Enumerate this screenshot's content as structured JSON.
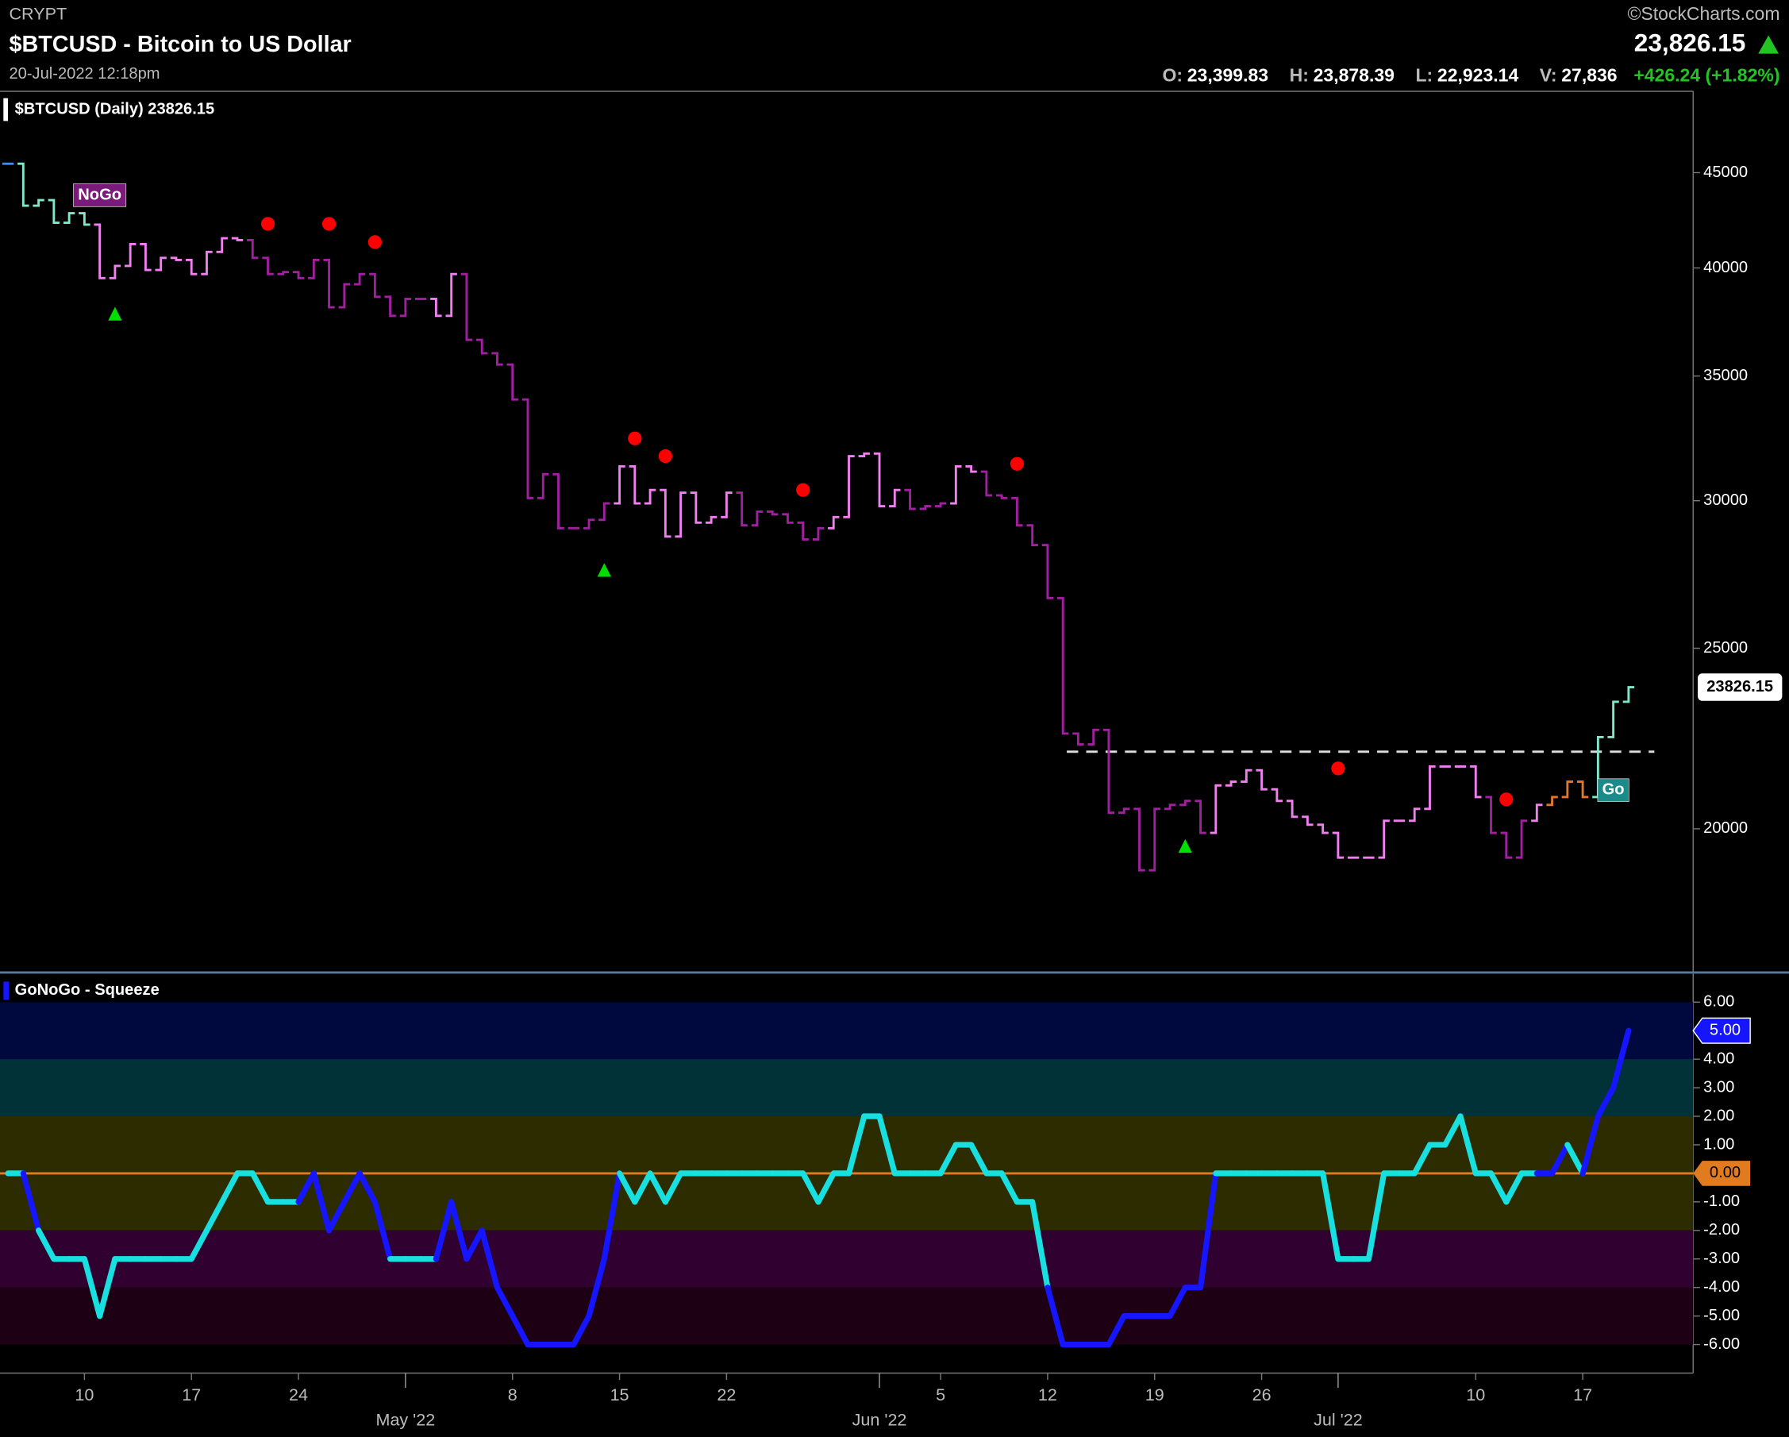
{
  "header": {
    "exchange": "CRYPT",
    "title": "$BTCUSD - Bitcoin to US Dollar",
    "timestamp": "20-Jul-2022 12:18pm",
    "source": "©StockCharts.com",
    "last_price": "23,826.15",
    "open": {
      "label": "O:",
      "value": "23,399.83"
    },
    "high": {
      "label": "H:",
      "value": "23,878.39"
    },
    "low": {
      "label": "L:",
      "value": "22,923.14"
    },
    "volume": {
      "label": "V:",
      "value": "27,836"
    },
    "change": "+426.24 (+1.82%)"
  },
  "chart_data": [
    {
      "type": "stock",
      "title": "$BTCUSD (Daily) 23826.15",
      "log_scale": true,
      "x": [
        "2022-04-05",
        "2022-04-06",
        "2022-04-07",
        "2022-04-08",
        "2022-04-09",
        "2022-04-10",
        "2022-04-11",
        "2022-04-12",
        "2022-04-13",
        "2022-04-14",
        "2022-04-15",
        "2022-04-16",
        "2022-04-17",
        "2022-04-18",
        "2022-04-19",
        "2022-04-20",
        "2022-04-21",
        "2022-04-22",
        "2022-04-23",
        "2022-04-24",
        "2022-04-25",
        "2022-04-26",
        "2022-04-27",
        "2022-04-28",
        "2022-04-29",
        "2022-04-30",
        "2022-05-01",
        "2022-05-02",
        "2022-05-03",
        "2022-05-04",
        "2022-05-05",
        "2022-05-06",
        "2022-05-07",
        "2022-05-08",
        "2022-05-09",
        "2022-05-10",
        "2022-05-11",
        "2022-05-12",
        "2022-05-13",
        "2022-05-14",
        "2022-05-15",
        "2022-05-16",
        "2022-05-17",
        "2022-05-18",
        "2022-05-19",
        "2022-05-20",
        "2022-05-21",
        "2022-05-22",
        "2022-05-23",
        "2022-05-24",
        "2022-05-25",
        "2022-05-26",
        "2022-05-27",
        "2022-05-28",
        "2022-05-29",
        "2022-05-30",
        "2022-05-31",
        "2022-06-01",
        "2022-06-02",
        "2022-06-03",
        "2022-06-04",
        "2022-06-05",
        "2022-06-06",
        "2022-06-07",
        "2022-06-08",
        "2022-06-09",
        "2022-06-10",
        "2022-06-11",
        "2022-06-12",
        "2022-06-13",
        "2022-06-14",
        "2022-06-15",
        "2022-06-16",
        "2022-06-17",
        "2022-06-18",
        "2022-06-19",
        "2022-06-20",
        "2022-06-21",
        "2022-06-22",
        "2022-06-23",
        "2022-06-24",
        "2022-06-25",
        "2022-06-26",
        "2022-06-27",
        "2022-06-28",
        "2022-06-29",
        "2022-06-30",
        "2022-07-01",
        "2022-07-02",
        "2022-07-03",
        "2022-07-04",
        "2022-07-05",
        "2022-07-06",
        "2022-07-07",
        "2022-07-08",
        "2022-07-09",
        "2022-07-10",
        "2022-07-11",
        "2022-07-12",
        "2022-07-13",
        "2022-07-14",
        "2022-07-15",
        "2022-07-16",
        "2022-07-17",
        "2022-07-18",
        "2022-07-19",
        "2022-07-20"
      ],
      "values": [
        45500,
        43200,
        43500,
        42300,
        42800,
        42200,
        39500,
        40100,
        41200,
        39900,
        40500,
        40400,
        39700,
        40800,
        41500,
        41400,
        40500,
        39700,
        39800,
        39500,
        40400,
        38100,
        39200,
        39700,
        38600,
        37700,
        38500,
        38500,
        37700,
        39700,
        36600,
        36000,
        35500,
        34000,
        30100,
        31000,
        29000,
        29000,
        29300,
        29900,
        31300,
        29900,
        30400,
        28700,
        30300,
        29200,
        29400,
        30300,
        29100,
        29600,
        29500,
        29200,
        28600,
        29000,
        29400,
        31700,
        31800,
        29800,
        30400,
        29700,
        29800,
        29900,
        31300,
        31100,
        30200,
        30100,
        29100,
        28400,
        26600,
        22500,
        22200,
        22600,
        20400,
        20500,
        19000,
        20500,
        20600,
        20700,
        19900,
        21100,
        21200,
        21500,
        21000,
        20700,
        20300,
        20100,
        19900,
        19300,
        19300,
        19300,
        20200,
        20200,
        20500,
        21600,
        21600,
        21600,
        20800,
        19900,
        19300,
        20200,
        20600,
        20800,
        21200,
        20800,
        22400,
        23400,
        23826.15
      ],
      "colors": [
        "#3a8bff",
        "#7fe8c8",
        "#7fe8c8",
        "#7fe8c8",
        "#7fe8c8",
        "#7fe8c8",
        "#f07ff0",
        "#f07ff0",
        "#f07ff0",
        "#f07ff0",
        "#f07ff0",
        "#f07ff0",
        "#f07ff0",
        "#f07ff0",
        "#f07ff0",
        "#f07ff0",
        "#a020a0",
        "#a020a0",
        "#a020a0",
        "#a020a0",
        "#a020a0",
        "#a020a0",
        "#a020a0",
        "#a020a0",
        "#a020a0",
        "#a020a0",
        "#a020a0",
        "#a020a0",
        "#f07ff0",
        "#f07ff0",
        "#a020a0",
        "#a020a0",
        "#a020a0",
        "#a020a0",
        "#a020a0",
        "#a020a0",
        "#a020a0",
        "#a020a0",
        "#a020a0",
        "#a020a0",
        "#f07ff0",
        "#f07ff0",
        "#f07ff0",
        "#f07ff0",
        "#f07ff0",
        "#f07ff0",
        "#f07ff0",
        "#f07ff0",
        "#a020a0",
        "#a020a0",
        "#a020a0",
        "#a020a0",
        "#a020a0",
        "#a020a0",
        "#f07ff0",
        "#f07ff0",
        "#f07ff0",
        "#f07ff0",
        "#f07ff0",
        "#a020a0",
        "#a020a0",
        "#a020a0",
        "#f07ff0",
        "#f07ff0",
        "#a020a0",
        "#a020a0",
        "#a020a0",
        "#a020a0",
        "#a020a0",
        "#a020a0",
        "#a020a0",
        "#a020a0",
        "#a020a0",
        "#a020a0",
        "#a020a0",
        "#a020a0",
        "#a020a0",
        "#a020a0",
        "#a020a0",
        "#f07ff0",
        "#f07ff0",
        "#f07ff0",
        "#f07ff0",
        "#f07ff0",
        "#f07ff0",
        "#f07ff0",
        "#f07ff0",
        "#f07ff0",
        "#f07ff0",
        "#f07ff0",
        "#f07ff0",
        "#f07ff0",
        "#f07ff0",
        "#f07ff0",
        "#f07ff0",
        "#f07ff0",
        "#f07ff0",
        "#a020a0",
        "#a020a0",
        "#a020a0",
        "#f07ff0",
        "#e0782c",
        "#e0782c",
        "#e0782c",
        "#7fe8c8",
        "#7fe8c8",
        "#7fe8c8"
      ],
      "ylim": [
        16770,
        49760
      ],
      "yticks": [
        45000,
        40000,
        35000,
        30000,
        25000,
        20000
      ],
      "reference_line": {
        "value": 22000,
        "color": "#dddddd"
      },
      "markers": [
        {
          "shape": "circle",
          "color": "#ff0000",
          "x": "2022-04-22",
          "y": 42240
        },
        {
          "shape": "circle",
          "color": "#ff0000",
          "x": "2022-04-26",
          "y": 42240
        },
        {
          "shape": "circle",
          "color": "#ff0000",
          "x": "2022-04-29",
          "y": 41300
        },
        {
          "shape": "circle",
          "color": "#ff0000",
          "x": "2022-05-16",
          "y": 32400
        },
        {
          "shape": "circle",
          "color": "#ff0000",
          "x": "2022-05-18",
          "y": 31700
        },
        {
          "shape": "circle",
          "color": "#ff0000",
          "x": "2022-05-27",
          "y": 30400
        },
        {
          "shape": "circle",
          "color": "#ff0000",
          "x": "2022-06-10",
          "y": 31400
        },
        {
          "shape": "circle",
          "color": "#ff0000",
          "x": "2022-07-01",
          "y": 21550
        },
        {
          "shape": "circle",
          "color": "#ff0000",
          "x": "2022-07-12",
          "y": 20740
        },
        {
          "shape": "triangle",
          "color": "#00e000",
          "x": "2022-04-12",
          "y": 37800
        },
        {
          "shape": "triangle",
          "color": "#00e000",
          "x": "2022-05-14",
          "y": 27540
        },
        {
          "shape": "triangle",
          "color": "#00e000",
          "x": "2022-06-21",
          "y": 19580
        }
      ],
      "annotations": [
        {
          "text": "NoGo",
          "x": "2022-04-11",
          "y": 43760,
          "color": "#7a1a7a"
        },
        {
          "text": "Go",
          "x": "2022-07-19",
          "y": 20980,
          "color": "#1a8a8a"
        }
      ]
    },
    {
      "type": "line",
      "title": "GoNoGo - Squeeze",
      "values": [
        0,
        0,
        -2,
        -3,
        -3,
        -3,
        -5,
        -3,
        -3,
        -3,
        -3,
        -3,
        -3,
        -2,
        -1,
        0,
        0,
        -1,
        -1,
        -1,
        0,
        -2,
        -1,
        0,
        -1,
        -3,
        -3,
        -3,
        -3,
        -1,
        -3,
        -2,
        -4,
        -5,
        -6,
        -6,
        -6,
        -6,
        -5,
        -3,
        0,
        -1,
        0,
        -1,
        0,
        0,
        0,
        0,
        0,
        0,
        0,
        0,
        0,
        -1,
        0,
        0,
        2,
        2,
        0,
        0,
        0,
        0,
        1,
        1,
        0,
        0,
        -1,
        -1,
        -4,
        -6,
        -6,
        -6,
        -6,
        -5,
        -5,
        -5,
        -5,
        -4,
        -4,
        0,
        0,
        0,
        0,
        0,
        0,
        0,
        0,
        -3,
        -3,
        -3,
        0,
        0,
        0,
        1,
        1,
        2,
        0,
        0,
        -1,
        0,
        0,
        0,
        1,
        0,
        2,
        3,
        5
      ],
      "colors": [
        "#19e0e0",
        "#19e0e0",
        "#1515ff",
        "#19e0e0",
        "#19e0e0",
        "#19e0e0",
        "#19e0e0",
        "#19e0e0",
        "#19e0e0",
        "#19e0e0",
        "#19e0e0",
        "#19e0e0",
        "#19e0e0",
        "#19e0e0",
        "#19e0e0",
        "#19e0e0",
        "#19e0e0",
        "#19e0e0",
        "#19e0e0",
        "#19e0e0",
        "#1515ff",
        "#1515ff",
        "#1515ff",
        "#1515ff",
        "#1515ff",
        "#1515ff",
        "#19e0e0",
        "#19e0e0",
        "#19e0e0",
        "#1515ff",
        "#1515ff",
        "#1515ff",
        "#1515ff",
        "#1515ff",
        "#1515ff",
        "#1515ff",
        "#1515ff",
        "#1515ff",
        "#1515ff",
        "#1515ff",
        "#1515ff",
        "#19e0e0",
        "#19e0e0",
        "#19e0e0",
        "#19e0e0",
        "#19e0e0",
        "#19e0e0",
        "#19e0e0",
        "#19e0e0",
        "#19e0e0",
        "#19e0e0",
        "#19e0e0",
        "#19e0e0",
        "#19e0e0",
        "#19e0e0",
        "#19e0e0",
        "#19e0e0",
        "#19e0e0",
        "#19e0e0",
        "#19e0e0",
        "#19e0e0",
        "#19e0e0",
        "#19e0e0",
        "#19e0e0",
        "#19e0e0",
        "#19e0e0",
        "#19e0e0",
        "#19e0e0",
        "#19e0e0",
        "#1515ff",
        "#1515ff",
        "#1515ff",
        "#1515ff",
        "#1515ff",
        "#1515ff",
        "#1515ff",
        "#1515ff",
        "#1515ff",
        "#1515ff",
        "#1515ff",
        "#19e0e0",
        "#19e0e0",
        "#19e0e0",
        "#19e0e0",
        "#19e0e0",
        "#19e0e0",
        "#19e0e0",
        "#19e0e0",
        "#19e0e0",
        "#19e0e0",
        "#19e0e0",
        "#19e0e0",
        "#19e0e0",
        "#19e0e0",
        "#19e0e0",
        "#19e0e0",
        "#19e0e0",
        "#19e0e0",
        "#19e0e0",
        "#19e0e0",
        "#19e0e0",
        "#1515ff",
        "#1515ff",
        "#19e0e0",
        "#1515ff",
        "#1515ff",
        "#1515ff"
      ],
      "last_label": "5.00",
      "last_color": "#1515ff",
      "ylim": [
        -7,
        7
      ],
      "yticks": [
        {
          "value": 6,
          "label": "6.00"
        },
        {
          "value": 4,
          "label": "4.00"
        },
        {
          "value": 3,
          "label": "3.00"
        },
        {
          "value": 2,
          "label": "2.00"
        },
        {
          "value": 1,
          "label": "1.00"
        },
        {
          "value": -1,
          "label": "-1.00"
        },
        {
          "value": -2,
          "label": "-2.00"
        },
        {
          "value": -3,
          "label": "-3.00"
        },
        {
          "value": -4,
          "label": "-4.00"
        },
        {
          "value": -5,
          "label": "-5.00"
        },
        {
          "value": -6,
          "label": "-6.00"
        }
      ],
      "zero_line": {
        "value": 0,
        "label": "0.00",
        "color": "#e07b20"
      },
      "bands": [
        {
          "from": 4,
          "to": 6,
          "color": "#00093d"
        },
        {
          "from": 2,
          "to": 4,
          "color": "#003237"
        },
        {
          "from": 0,
          "to": 2,
          "color": "#2c2c00"
        },
        {
          "from": -2,
          "to": 0,
          "color": "#2c2c00"
        },
        {
          "from": -4,
          "to": -2,
          "color": "#2f0030"
        },
        {
          "from": -6,
          "to": -4,
          "color": "#1e0014"
        }
      ],
      "xticks": [
        {
          "value": "2022-04-10",
          "label": "10"
        },
        {
          "value": "2022-04-17",
          "label": "17"
        },
        {
          "value": "2022-04-24",
          "label": "24"
        },
        {
          "value": "2022-05-08",
          "label": "8"
        },
        {
          "value": "2022-05-15",
          "label": "15"
        },
        {
          "value": "2022-05-22",
          "label": "22"
        },
        {
          "value": "2022-06-05",
          "label": "5"
        },
        {
          "value": "2022-06-12",
          "label": "12"
        },
        {
          "value": "2022-06-19",
          "label": "19"
        },
        {
          "value": "2022-06-26",
          "label": "26"
        },
        {
          "value": "2022-07-10",
          "label": "10"
        },
        {
          "value": "2022-07-17",
          "label": "17"
        }
      ],
      "xticks_major": [
        {
          "value": "2022-05-01",
          "label": "May '22"
        },
        {
          "value": "2022-06-01",
          "label": "Jun '22"
        },
        {
          "value": "2022-07-01",
          "label": "Jul '22"
        }
      ]
    }
  ]
}
